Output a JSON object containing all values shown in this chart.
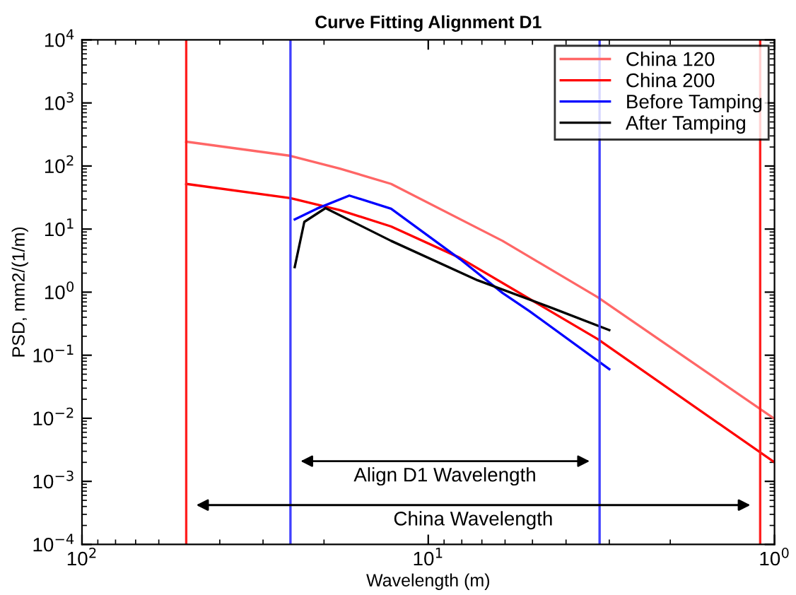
{
  "chart_data": {
    "type": "line",
    "title": "Curve Fitting Alignment D1",
    "xlabel": "Wavelength (m)",
    "ylabel": "PSD, mm2/(1/m)",
    "log": "xy",
    "xlim": [
      100,
      1
    ],
    "ylim": [
      0.0001,
      10000
    ],
    "xticks": [
      {
        "value": 100,
        "label": "10$^{2}$"
      },
      {
        "value": 10,
        "label": "10$^{1}$"
      },
      {
        "value": 1,
        "label": "10$^{0}$"
      }
    ],
    "yticks": [
      {
        "value": 0.0001,
        "label": "10$^{−4}$"
      },
      {
        "value": 0.001,
        "label": "10$^{−3}$"
      },
      {
        "value": 0.01,
        "label": "10$^{−2}$"
      },
      {
        "value": 0.1,
        "label": "10$^{−1}$"
      },
      {
        "value": 1,
        "label": "10$^{0}$"
      },
      {
        "value": 10,
        "label": "10$^{1}$"
      },
      {
        "value": 100,
        "label": "10$^{2}$"
      },
      {
        "value": 1000,
        "label": "10$^{3}$"
      },
      {
        "value": 10000,
        "label": "10$^{4}$"
      }
    ],
    "legend": "top right",
    "grid": false,
    "series": [
      {
        "name": "China 120",
        "color": "#ff6666",
        "x": [
          50,
          25,
          18,
          12.8,
          6.1,
          3.24,
          1.0
        ],
        "values": [
          243,
          145,
          91,
          52,
          6.5,
          0.83,
          0.0098
        ]
      },
      {
        "name": "China 200",
        "color": "#ff0000",
        "x": [
          50,
          25,
          18,
          12.8,
          8.1,
          3.24,
          1.0
        ],
        "values": [
          52,
          31,
          20,
          11,
          3.5,
          0.18,
          0.002
        ]
      },
      {
        "name": "Before Tamping",
        "color": "#0000ff",
        "x": [
          24.3,
          21,
          16.9,
          12.8,
          8.1,
          6.1,
          5.1,
          3.0
        ],
        "values": [
          14.2,
          21,
          34,
          21,
          3.35,
          0.97,
          0.5,
          0.06
        ]
      },
      {
        "name": "After Tamping",
        "color": "#000000",
        "x": [
          24.3,
          22.8,
          19.8,
          12.8,
          7.2,
          4.35,
          3.0
        ],
        "values": [
          2.5,
          13,
          21.5,
          6.5,
          1.54,
          0.55,
          0.25
        ]
      }
    ],
    "ref_lines": [
      {
        "axis": "x",
        "value": 25,
        "color": "#4040ff"
      },
      {
        "axis": "x",
        "value": 3.2,
        "color": "#4040ff"
      },
      {
        "axis": "x",
        "value": 50,
        "color": "#ff2020"
      },
      {
        "axis": "x",
        "value": 1.1,
        "color": "#ff2020"
      }
    ],
    "annotations": [
      "Align D1 Wavelength",
      "China Wavelength"
    ]
  }
}
